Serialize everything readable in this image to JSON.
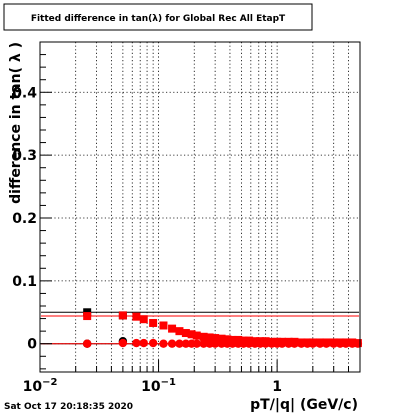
{
  "chart_data": {
    "type": "scatter",
    "title": "Fitted difference in tan(λ) for Global Rec All EtapT",
    "xlabel": "pT/|q| (GeV/c)",
    "ylabel": "difference in tan( λ )",
    "x_scale": "log",
    "xlim": [
      0.01,
      5
    ],
    "ylim": [
      -0.045,
      0.48
    ],
    "grid": true,
    "y_ticks": [
      0,
      0.1,
      0.2,
      0.3,
      0.4
    ],
    "y_tick_labels": [
      "0",
      "0.1",
      "0.2",
      "0.3",
      "0.4"
    ],
    "x_major_ticks": [
      0.01,
      0.1,
      1
    ],
    "x_tick_labels": [
      {
        "base": "10",
        "exp": "−2"
      },
      {
        "base": "10",
        "exp": "−1"
      },
      {
        "base": "1",
        "exp": ""
      }
    ],
    "series": [
      {
        "marker": "square",
        "color": "#000000",
        "x": [
          0.025,
          0.05
        ],
        "y": [
          0.05,
          0.045
        ]
      },
      {
        "marker": "square",
        "color": "#ff0000",
        "x": [
          0.025,
          0.05,
          0.065,
          0.075,
          0.09,
          0.11,
          0.13,
          0.15,
          0.17,
          0.19,
          0.21,
          0.24,
          0.27,
          0.3,
          0.34,
          0.38,
          0.42,
          0.47,
          0.52,
          0.58,
          0.65,
          0.72,
          0.8,
          0.9,
          1.0,
          1.1,
          1.25,
          1.4,
          1.6,
          1.8,
          2.0,
          2.3,
          2.6,
          3.0,
          3.4,
          3.8,
          4.3,
          4.8
        ],
        "y": [
          0.044,
          0.045,
          0.043,
          0.039,
          0.033,
          0.029,
          0.024,
          0.02,
          0.017,
          0.015,
          0.013,
          0.011,
          0.01,
          0.009,
          0.008,
          0.007,
          0.006,
          0.006,
          0.005,
          0.005,
          0.004,
          0.004,
          0.004,
          0.003,
          0.003,
          0.003,
          0.003,
          0.003,
          0.002,
          0.002,
          0.002,
          0.002,
          0.002,
          0.002,
          0.002,
          0.002,
          0.002,
          0.001
        ]
      },
      {
        "marker": "circle",
        "color": "#000000",
        "x": [
          0.025,
          0.05
        ],
        "y": [
          0.0,
          0.004
        ]
      },
      {
        "marker": "circle",
        "color": "#ff0000",
        "x": [
          0.025,
          0.05,
          0.065,
          0.075,
          0.09,
          0.11,
          0.13,
          0.15,
          0.17,
          0.19,
          0.21,
          0.24,
          0.27,
          0.3,
          0.34,
          0.38,
          0.42,
          0.47,
          0.52,
          0.58,
          0.65,
          0.72,
          0.8,
          0.9,
          1.0,
          1.1,
          1.25,
          1.4,
          1.6,
          1.8,
          2.0,
          2.3,
          2.6,
          3.0,
          3.4,
          3.8,
          4.3,
          4.8
        ],
        "y": [
          0.0,
          0.001,
          0.001,
          0.001,
          0.001,
          0.0,
          0.0,
          0.0,
          0.0,
          0.0,
          0.0,
          0.0,
          0.0,
          0.0,
          0.0,
          0.0,
          0.0,
          0.0,
          0.0,
          0.0,
          0.0,
          0.0,
          0.0,
          0.0,
          0.0,
          0.0,
          0.0,
          0.0,
          0.0,
          0.0,
          0.0,
          0.0,
          0.0,
          0.0,
          0.0,
          0.0,
          0.0,
          0.0
        ]
      }
    ],
    "fit_lines": [
      {
        "color": "#000000",
        "y": 0.05
      },
      {
        "color": "#ff0000",
        "y": 0.044
      },
      {
        "color": "#000000",
        "y": 0.0
      },
      {
        "color": "#ff0000",
        "y": 0.0
      }
    ]
  },
  "footer": {
    "timestamp": "Sat Oct 17 20:18:35 2020"
  }
}
